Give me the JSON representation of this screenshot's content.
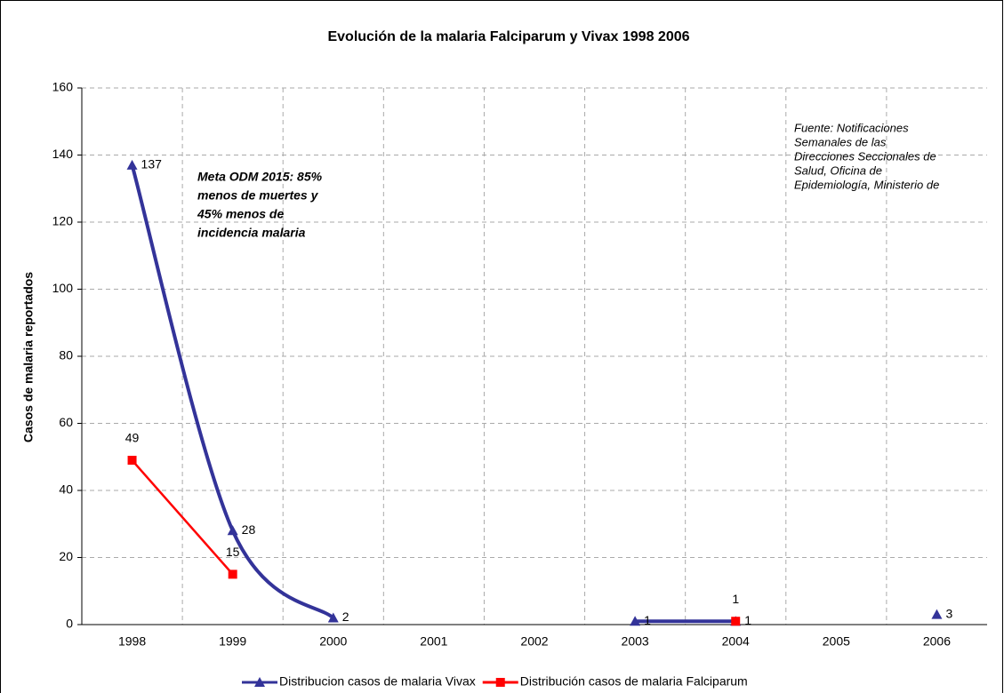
{
  "chart_data": {
    "type": "line",
    "title": "Evolución de la malaria Falciparum y Vivax 1998 2006",
    "y_label": "Casos de malaria reportados",
    "categories": [
      "1998",
      "1999",
      "2000",
      "2001",
      "2002",
      "2003",
      "2004",
      "2005",
      "2006"
    ],
    "series": [
      {
        "name": "Distribucion casos de malaria Vivax",
        "color": "#333399",
        "marker": "triangle",
        "values": [
          137,
          28,
          2,
          null,
          null,
          1,
          1,
          null,
          3
        ]
      },
      {
        "name": "Distribución casos de malaria Falciparum",
        "color": "#ff0000",
        "marker": "square",
        "values": [
          49,
          15,
          null,
          null,
          null,
          null,
          1,
          null,
          null
        ]
      }
    ],
    "ylim": [
      0,
      160
    ],
    "yticks": [
      0,
      20,
      40,
      60,
      80,
      100,
      120,
      140,
      160
    ],
    "grid": true,
    "legend": "bottom",
    "annotations": [
      {
        "lines": [
          "Meta ODM 2015: 85%",
          "menos de muertes y",
          "45% menos de",
          "incidencia malaria"
        ]
      },
      {
        "lines": [
          "Fuente: Notificaciones",
          "Semanales de las",
          "Direcciones Seccionales de",
          "Salud, Oficina de",
          "Epidemiología, Ministerio de"
        ]
      }
    ]
  }
}
